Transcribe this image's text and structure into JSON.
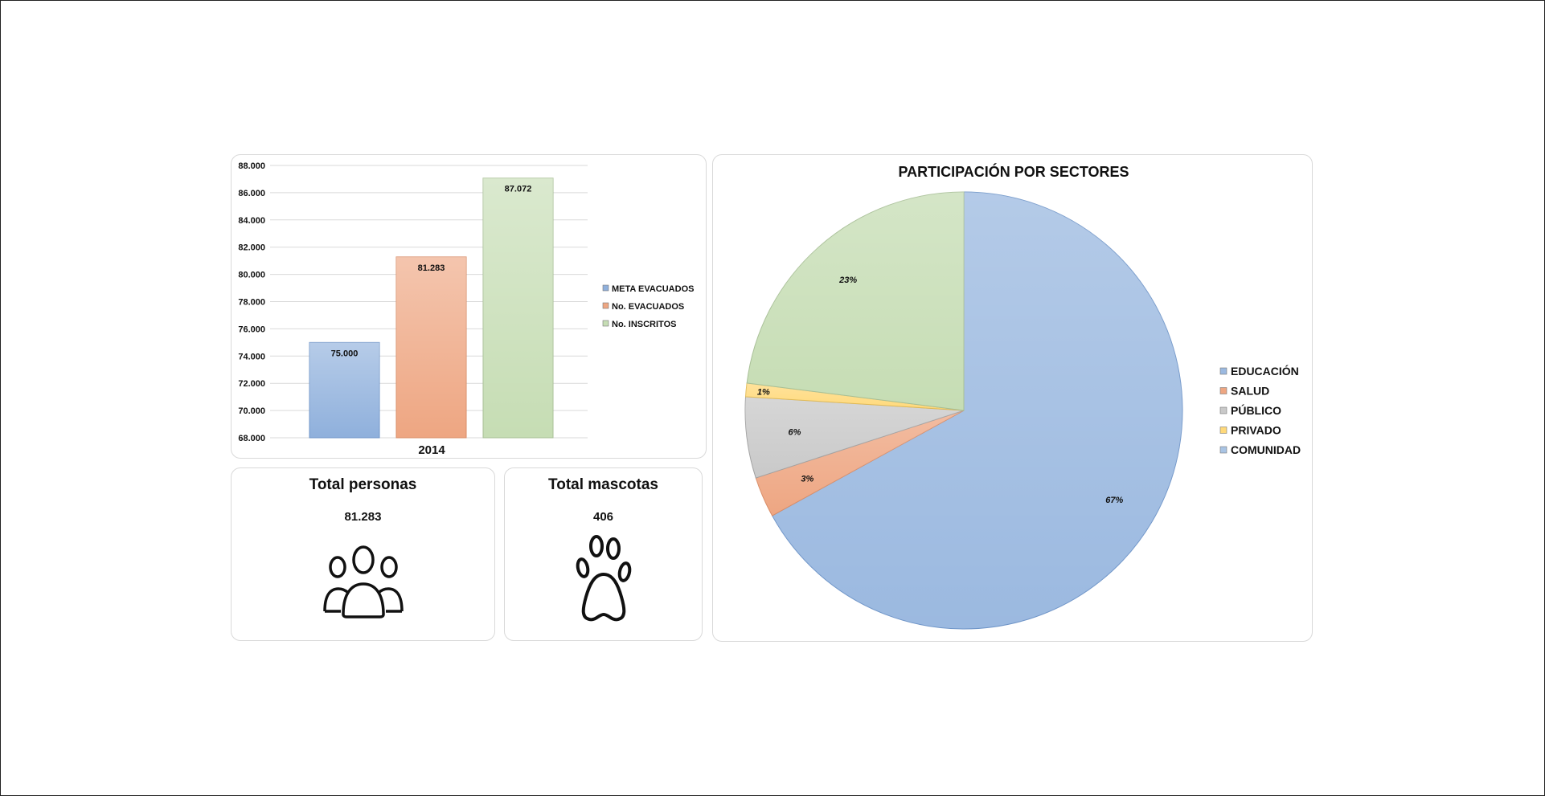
{
  "bar_chart": {
    "legend": [
      {
        "label": "META EVACUADOS",
        "color": "#8fb0dc"
      },
      {
        "label": "No. EVACUADOS",
        "color": "#eea682"
      },
      {
        "label": "No. INSCRITOS",
        "color": "#c6ddb4"
      }
    ]
  },
  "kpis": {
    "persons": {
      "title": "Total personas",
      "value": "81.283",
      "icon": "people-group-icon"
    },
    "pets": {
      "title": "Total mascotas",
      "value": "406",
      "icon": "paw-icon"
    }
  },
  "pie_chart": {
    "title": "PARTICIPACIÓN POR SECTORES"
  },
  "chart_data": [
    {
      "type": "bar",
      "categories": [
        "2014"
      ],
      "series": [
        {
          "name": "META EVACUADOS",
          "values": [
            75000
          ],
          "label": "75.000",
          "color": "#8fb0dc"
        },
        {
          "name": "No. EVACUADOS",
          "values": [
            81283
          ],
          "label": "81.283",
          "color": "#eea682"
        },
        {
          "name": "No. INSCRITOS",
          "values": [
            87072
          ],
          "label": "87.072",
          "color": "#c6ddb4"
        }
      ],
      "ylim": [
        68000,
        88000
      ],
      "yticks": [
        "68.000",
        "70.000",
        "72.000",
        "74.000",
        "76.000",
        "78.000",
        "80.000",
        "82.000",
        "84.000",
        "86.000",
        "88.000"
      ],
      "ytick_values": [
        68000,
        70000,
        72000,
        74000,
        76000,
        78000,
        80000,
        82000,
        84000,
        86000,
        88000
      ],
      "grid": true,
      "legend_position": "right"
    },
    {
      "type": "pie",
      "title": "PARTICIPACIÓN POR SECTORES",
      "labels": [
        "EDUCACIÓN",
        "SALUD",
        "PÚBLICO",
        "PRIVADO",
        "COMUNIDAD"
      ],
      "values": [
        67,
        3,
        6,
        1,
        23
      ],
      "value_labels": [
        "67%",
        "3%",
        "6%",
        "1%",
        "23%"
      ],
      "colors": [
        "#9bb9e0",
        "#eea682",
        "#c9c9c9",
        "#ffd97a",
        "#c6ddb4"
      ],
      "legend_colors": [
        "#9bb9e0",
        "#eea682",
        "#c9c9c9",
        "#ffd97a",
        "#a9c4e4"
      ],
      "legend_position": "right"
    }
  ]
}
